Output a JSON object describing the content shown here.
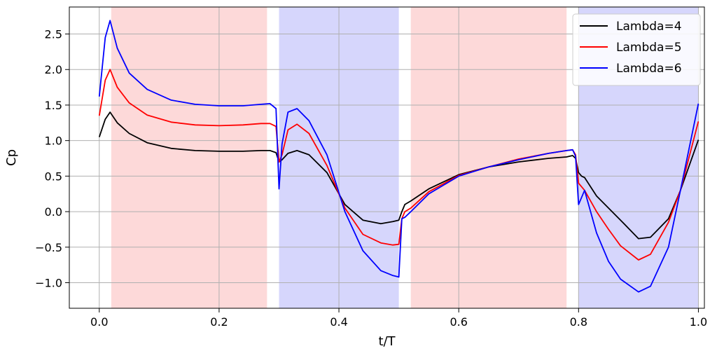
{
  "chart_data": {
    "type": "line",
    "title": "",
    "xlabel": "t/T",
    "ylabel": "Cp",
    "xlim": [
      -0.05,
      1.01
    ],
    "ylim": [
      -1.36,
      2.88
    ],
    "xticks": [
      0.0,
      0.2,
      0.4,
      0.6,
      0.8,
      1.0
    ],
    "xtick_labels": [
      "0.0",
      "0.2",
      "0.4",
      "0.6",
      "0.8",
      "1.0"
    ],
    "yticks": [
      -1.0,
      -0.5,
      0.0,
      0.5,
      1.0,
      1.5,
      2.0,
      2.5
    ],
    "ytick_labels": [
      "−1.0",
      "−0.5",
      "0.0",
      "0.5",
      "1.0",
      "1.5",
      "2.0",
      "2.5"
    ],
    "grid": true,
    "legend_position": "top-right",
    "shaded_regions": [
      {
        "x0": 0.02,
        "x1": 0.28,
        "color": "#fdd9d9"
      },
      {
        "x0": 0.3,
        "x1": 0.5,
        "color": "#d6d6fc"
      },
      {
        "x0": 0.52,
        "x1": 0.78,
        "color": "#fdd9d9"
      },
      {
        "x0": 0.8,
        "x1": 1.0,
        "color": "#d6d6fc"
      }
    ],
    "x": [
      0.0,
      0.01,
      0.018,
      0.03,
      0.05,
      0.08,
      0.12,
      0.16,
      0.2,
      0.24,
      0.27,
      0.285,
      0.295,
      0.3,
      0.305,
      0.315,
      0.33,
      0.35,
      0.38,
      0.41,
      0.44,
      0.47,
      0.49,
      0.5,
      0.505,
      0.51,
      0.52,
      0.55,
      0.6,
      0.65,
      0.7,
      0.75,
      0.78,
      0.79,
      0.795,
      0.8,
      0.805,
      0.81,
      0.83,
      0.85,
      0.87,
      0.9,
      0.92,
      0.95,
      0.97,
      1.0
    ],
    "series": [
      {
        "name": "Lambda=4",
        "color": "#000000",
        "values": [
          1.05,
          1.3,
          1.4,
          1.25,
          1.1,
          0.97,
          0.89,
          0.86,
          0.85,
          0.85,
          0.86,
          0.86,
          0.83,
          0.7,
          0.73,
          0.82,
          0.86,
          0.8,
          0.55,
          0.1,
          -0.12,
          -0.17,
          -0.14,
          -0.12,
          0.0,
          0.1,
          0.15,
          0.32,
          0.52,
          0.63,
          0.7,
          0.75,
          0.77,
          0.79,
          0.75,
          0.55,
          0.5,
          0.48,
          0.22,
          0.05,
          -0.12,
          -0.38,
          -0.36,
          -0.1,
          0.3,
          1.01
        ]
      },
      {
        "name": "Lambda=5",
        "color": "#ff0000",
        "values": [
          1.35,
          1.85,
          2.0,
          1.75,
          1.53,
          1.36,
          1.26,
          1.22,
          1.21,
          1.22,
          1.24,
          1.24,
          1.2,
          0.7,
          0.8,
          1.15,
          1.23,
          1.1,
          0.65,
          0.05,
          -0.32,
          -0.44,
          -0.47,
          -0.46,
          -0.1,
          0.0,
          0.05,
          0.28,
          0.51,
          0.63,
          0.74,
          0.82,
          0.86,
          0.87,
          0.8,
          0.4,
          0.35,
          0.3,
          0.0,
          -0.25,
          -0.48,
          -0.68,
          -0.6,
          -0.15,
          0.3,
          1.27
        ]
      },
      {
        "name": "Lambda=6",
        "color": "#0000ff",
        "values": [
          1.62,
          2.45,
          2.69,
          2.3,
          1.95,
          1.72,
          1.57,
          1.51,
          1.49,
          1.49,
          1.51,
          1.52,
          1.45,
          0.32,
          0.95,
          1.4,
          1.45,
          1.28,
          0.8,
          0.0,
          -0.55,
          -0.83,
          -0.9,
          -0.92,
          -0.1,
          -0.08,
          0.0,
          0.25,
          0.5,
          0.63,
          0.73,
          0.82,
          0.86,
          0.87,
          0.78,
          0.1,
          0.2,
          0.3,
          -0.3,
          -0.7,
          -0.95,
          -1.13,
          -1.05,
          -0.5,
          0.3,
          1.52
        ]
      }
    ]
  }
}
